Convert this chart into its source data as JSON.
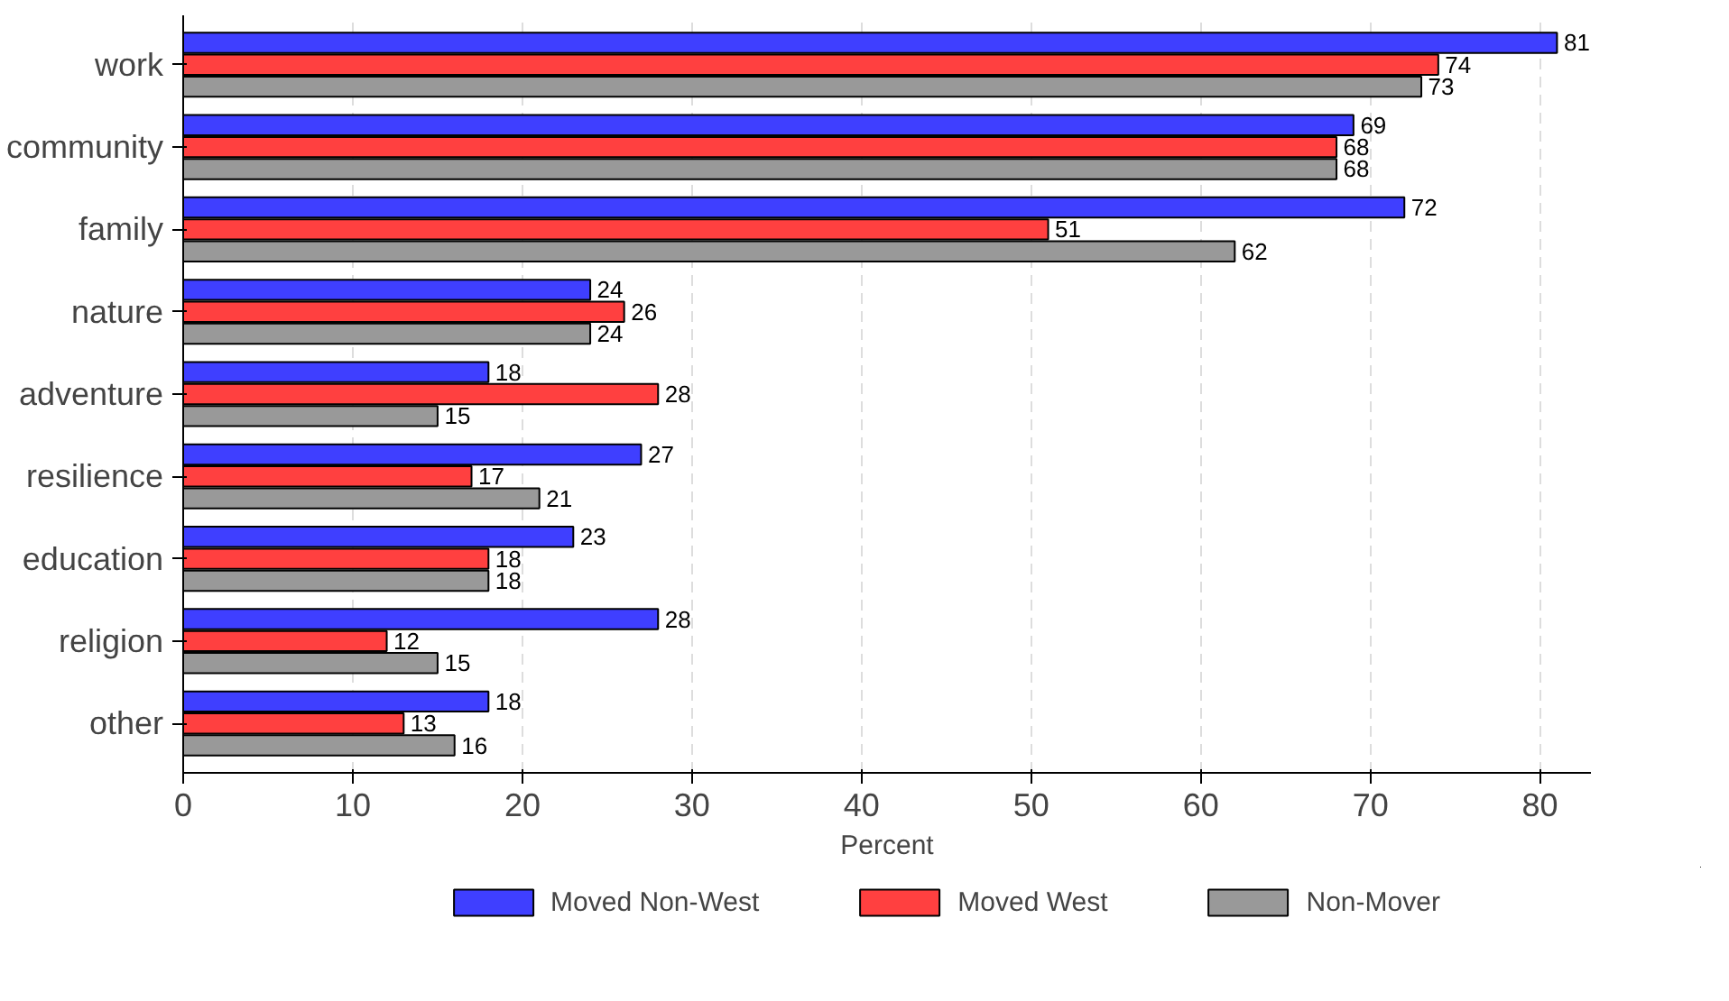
{
  "chart_data": {
    "type": "bar",
    "orientation": "horizontal",
    "categories": [
      "work",
      "community",
      "family",
      "nature",
      "adventure",
      "resilience",
      "education",
      "religion",
      "other"
    ],
    "series": [
      {
        "name": "Moved Non-West",
        "color": "#3f3fff",
        "values": [
          81,
          69,
          72,
          24,
          18,
          27,
          23,
          28,
          18
        ]
      },
      {
        "name": "Moved West",
        "color": "#ff4040",
        "values": [
          74,
          68,
          51,
          26,
          28,
          17,
          18,
          12,
          13
        ]
      },
      {
        "name": "Non-Mover",
        "color": "#999999",
        "values": [
          73,
          68,
          62,
          24,
          15,
          21,
          18,
          15,
          16
        ]
      }
    ],
    "xlabel": "Percent",
    "xlim": [
      0,
      83
    ],
    "xticks": [
      0,
      10,
      20,
      30,
      40,
      50,
      60,
      70,
      80
    ],
    "grid": "x",
    "legend": "bottom",
    "data_labels": true
  }
}
